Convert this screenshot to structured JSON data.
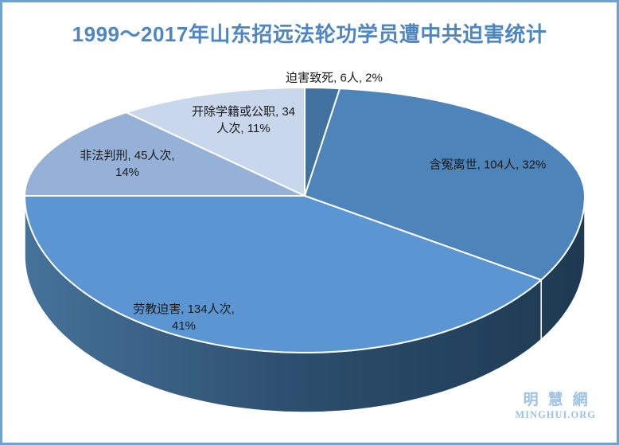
{
  "title": "1999～2017年山东招远法轮功学员遭中共迫害统计",
  "watermark": {
    "cjk": "明慧網",
    "latin": "MINGHUI.ORG"
  },
  "theme": {
    "frame_border_color": "#71a2cd",
    "title_color": "#4e86c1",
    "label_text_color": "#1a1a1a",
    "watermark_color": "#9cc2e5",
    "background_color": "#ffffff"
  },
  "chart_data": {
    "type": "pie",
    "style": "3d-perspective",
    "title": "1999～2017年山东招远法轮功学员遭中共迫害统计",
    "start_angle_deg": 0,
    "direction": "clockwise",
    "total_percent": 100,
    "legend": "none",
    "slices": [
      {
        "key": "persecuted-to-death",
        "label": "迫害致死",
        "value": 6,
        "unit": "人",
        "percent": 2,
        "color": "#40719f",
        "label_lines": [
          "迫害致死, 6人, 2%"
        ]
      },
      {
        "key": "died-from-persecution",
        "label": "含冤离世",
        "value": 104,
        "unit": "人",
        "percent": 32,
        "color": "#4d85ba",
        "label_lines": [
          "含冤离世, 104人, 32%"
        ]
      },
      {
        "key": "labor-camp-persecution",
        "label": "劳教迫害",
        "value": 134,
        "unit": "人次",
        "percent": 41,
        "color": "#5b96d3",
        "label_lines": [
          "劳教迫害, 134人次,",
          "41%"
        ]
      },
      {
        "key": "illegally-sentenced",
        "label": "非法判刑",
        "value": 45,
        "unit": "人次",
        "percent": 14,
        "color": "#95b1d8",
        "label_lines": [
          "非法判刑, 45人次,",
          "14%"
        ]
      },
      {
        "key": "expelled-school-or-job",
        "label": "开除学籍或公职",
        "value": 34,
        "unit": "人次",
        "percent": 11,
        "color": "#c9d7ec",
        "label_lines": [
          "开除学籍或公职, 34",
          "人次, 11%"
        ]
      }
    ],
    "side_wall_gradient": [
      "#46729a",
      "#2c4d6c",
      "#1d3a52"
    ]
  }
}
